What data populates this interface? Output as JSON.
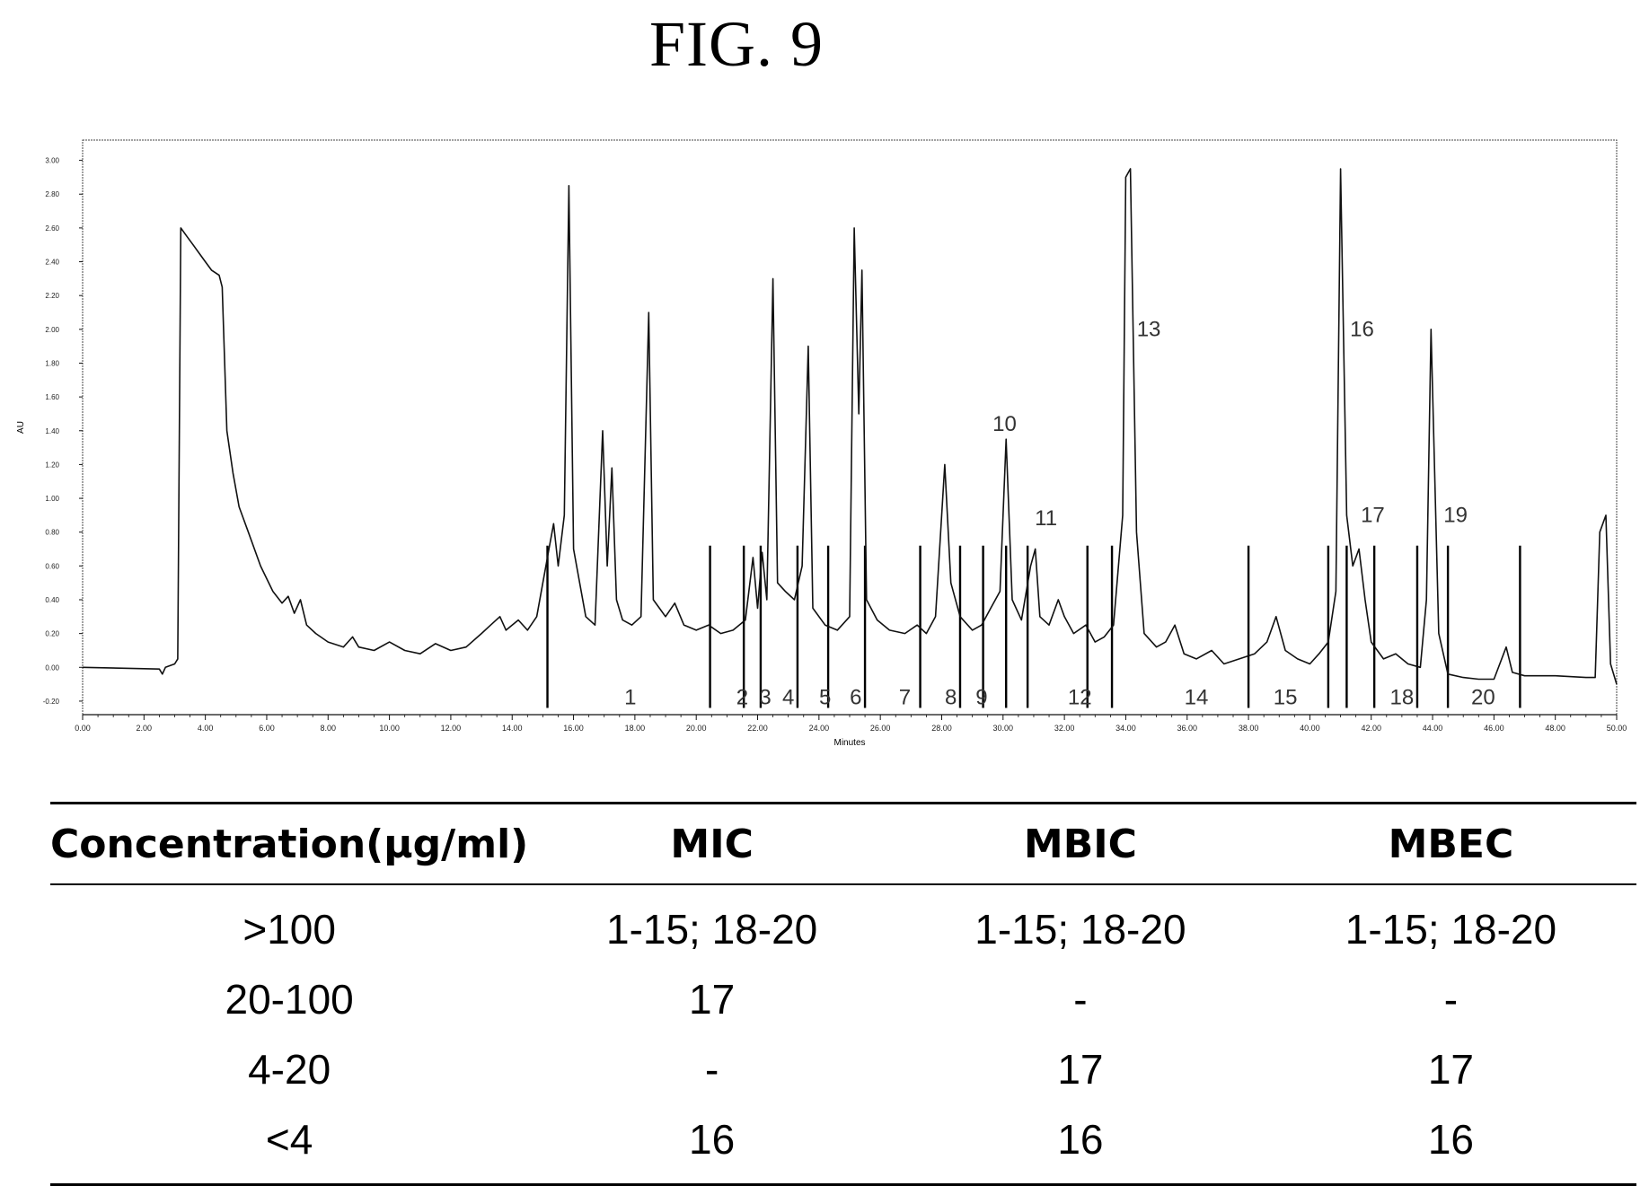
{
  "figure_title": "FIG. 9",
  "chart_data": {
    "type": "line",
    "xlabel": "Minutes",
    "ylabel": "AU",
    "xlim": [
      0,
      50
    ],
    "ylim": [
      -0.28,
      3.12
    ],
    "x_ticks": [
      "0.00",
      "2.00",
      "4.00",
      "6.00",
      "8.00",
      "10.00",
      "12.00",
      "14.00",
      "16.00",
      "18.00",
      "20.00",
      "22.00",
      "24.00",
      "26.00",
      "28.00",
      "30.00",
      "32.00",
      "34.00",
      "36.00",
      "38.00",
      "40.00",
      "42.00",
      "44.00",
      "46.00",
      "48.00",
      "50.00"
    ],
    "y_ticks": [
      "-0.20",
      "0.00",
      "0.20",
      "0.40",
      "0.60",
      "0.80",
      "1.00",
      "1.20",
      "1.40",
      "1.60",
      "1.80",
      "2.00",
      "2.20",
      "2.40",
      "2.60",
      "2.80",
      "3.00"
    ],
    "trace": [
      [
        0,
        0.0
      ],
      [
        2.5,
        -0.01
      ],
      [
        2.6,
        -0.04
      ],
      [
        2.7,
        0.0
      ],
      [
        3.0,
        0.02
      ],
      [
        3.1,
        0.05
      ],
      [
        3.2,
        2.6
      ],
      [
        3.4,
        2.55
      ],
      [
        3.6,
        2.5
      ],
      [
        3.8,
        2.45
      ],
      [
        4.0,
        2.4
      ],
      [
        4.2,
        2.35
      ],
      [
        4.45,
        2.32
      ],
      [
        4.55,
        2.25
      ],
      [
        4.7,
        1.4
      ],
      [
        4.9,
        1.15
      ],
      [
        5.1,
        0.95
      ],
      [
        5.4,
        0.8
      ],
      [
        5.8,
        0.6
      ],
      [
        6.2,
        0.45
      ],
      [
        6.5,
        0.38
      ],
      [
        6.7,
        0.42
      ],
      [
        6.9,
        0.32
      ],
      [
        7.1,
        0.4
      ],
      [
        7.3,
        0.25
      ],
      [
        7.6,
        0.2
      ],
      [
        8.0,
        0.15
      ],
      [
        8.5,
        0.12
      ],
      [
        8.8,
        0.18
      ],
      [
        9.0,
        0.12
      ],
      [
        9.5,
        0.1
      ],
      [
        10.0,
        0.15
      ],
      [
        10.5,
        0.1
      ],
      [
        11.0,
        0.08
      ],
      [
        11.5,
        0.14
      ],
      [
        12.0,
        0.1
      ],
      [
        12.5,
        0.12
      ],
      [
        13.0,
        0.2
      ],
      [
        13.3,
        0.25
      ],
      [
        13.6,
        0.3
      ],
      [
        13.8,
        0.22
      ],
      [
        14.2,
        0.28
      ],
      [
        14.5,
        0.22
      ],
      [
        14.8,
        0.3
      ],
      [
        15.0,
        0.5
      ],
      [
        15.2,
        0.7
      ],
      [
        15.35,
        0.85
      ],
      [
        15.5,
        0.6
      ],
      [
        15.7,
        0.9
      ],
      [
        15.85,
        2.85
      ],
      [
        16.0,
        0.7
      ],
      [
        16.2,
        0.5
      ],
      [
        16.4,
        0.3
      ],
      [
        16.7,
        0.25
      ],
      [
        16.95,
        1.4
      ],
      [
        17.1,
        0.6
      ],
      [
        17.25,
        1.18
      ],
      [
        17.4,
        0.4
      ],
      [
        17.6,
        0.28
      ],
      [
        17.9,
        0.25
      ],
      [
        18.2,
        0.3
      ],
      [
        18.45,
        2.1
      ],
      [
        18.6,
        0.4
      ],
      [
        18.8,
        0.35
      ],
      [
        19.0,
        0.3
      ],
      [
        19.3,
        0.38
      ],
      [
        19.6,
        0.25
      ],
      [
        20.0,
        0.22
      ],
      [
        20.4,
        0.25
      ],
      [
        20.8,
        0.2
      ],
      [
        21.2,
        0.22
      ],
      [
        21.6,
        0.28
      ],
      [
        21.85,
        0.65
      ],
      [
        22.0,
        0.35
      ],
      [
        22.15,
        0.68
      ],
      [
        22.3,
        0.4
      ],
      [
        22.5,
        2.3
      ],
      [
        22.65,
        0.5
      ],
      [
        22.9,
        0.45
      ],
      [
        23.2,
        0.4
      ],
      [
        23.45,
        0.6
      ],
      [
        23.65,
        1.9
      ],
      [
        23.8,
        0.35
      ],
      [
        24.2,
        0.25
      ],
      [
        24.6,
        0.22
      ],
      [
        25.0,
        0.3
      ],
      [
        25.15,
        2.6
      ],
      [
        25.3,
        1.5
      ],
      [
        25.4,
        2.35
      ],
      [
        25.55,
        0.4
      ],
      [
        25.9,
        0.28
      ],
      [
        26.3,
        0.22
      ],
      [
        26.8,
        0.2
      ],
      [
        27.2,
        0.25
      ],
      [
        27.5,
        0.2
      ],
      [
        27.8,
        0.3
      ],
      [
        28.1,
        1.2
      ],
      [
        28.3,
        0.5
      ],
      [
        28.6,
        0.3
      ],
      [
        29.0,
        0.22
      ],
      [
        29.3,
        0.25
      ],
      [
        29.6,
        0.35
      ],
      [
        29.9,
        0.45
      ],
      [
        30.1,
        1.35
      ],
      [
        30.3,
        0.4
      ],
      [
        30.6,
        0.28
      ],
      [
        30.9,
        0.6
      ],
      [
        31.05,
        0.7
      ],
      [
        31.2,
        0.3
      ],
      [
        31.5,
        0.25
      ],
      [
        31.8,
        0.4
      ],
      [
        32.0,
        0.3
      ],
      [
        32.3,
        0.2
      ],
      [
        32.7,
        0.25
      ],
      [
        33.0,
        0.15
      ],
      [
        33.3,
        0.18
      ],
      [
        33.6,
        0.25
      ],
      [
        33.9,
        0.9
      ],
      [
        34.0,
        2.9
      ],
      [
        34.15,
        2.95
      ],
      [
        34.35,
        0.8
      ],
      [
        34.6,
        0.2
      ],
      [
        35.0,
        0.12
      ],
      [
        35.3,
        0.15
      ],
      [
        35.6,
        0.25
      ],
      [
        35.9,
        0.08
      ],
      [
        36.3,
        0.05
      ],
      [
        36.8,
        0.1
      ],
      [
        37.2,
        0.02
      ],
      [
        37.7,
        0.05
      ],
      [
        38.2,
        0.08
      ],
      [
        38.6,
        0.15
      ],
      [
        38.9,
        0.3
      ],
      [
        39.2,
        0.1
      ],
      [
        39.6,
        0.05
      ],
      [
        40.0,
        0.02
      ],
      [
        40.3,
        0.08
      ],
      [
        40.6,
        0.15
      ],
      [
        40.85,
        0.45
      ],
      [
        41.0,
        2.95
      ],
      [
        41.2,
        0.9
      ],
      [
        41.4,
        0.6
      ],
      [
        41.6,
        0.7
      ],
      [
        41.8,
        0.4
      ],
      [
        42.0,
        0.15
      ],
      [
        42.4,
        0.05
      ],
      [
        42.8,
        0.08
      ],
      [
        43.2,
        0.02
      ],
      [
        43.6,
        0.0
      ],
      [
        43.8,
        0.4
      ],
      [
        43.95,
        2.0
      ],
      [
        44.2,
        0.2
      ],
      [
        44.5,
        -0.04
      ],
      [
        45.0,
        -0.06
      ],
      [
        45.5,
        -0.07
      ],
      [
        46.0,
        -0.07
      ],
      [
        46.4,
        0.12
      ],
      [
        46.6,
        -0.03
      ],
      [
        47.0,
        -0.05
      ],
      [
        48.0,
        -0.05
      ],
      [
        49.0,
        -0.06
      ],
      [
        49.3,
        -0.06
      ],
      [
        49.45,
        0.8
      ],
      [
        49.65,
        0.9
      ],
      [
        49.8,
        0.02
      ],
      [
        50.0,
        -0.1
      ]
    ],
    "peak_labels": [
      {
        "label": "1",
        "x": 17.85,
        "y": -0.22
      },
      {
        "label": "2",
        "x": 21.5,
        "y": -0.22
      },
      {
        "label": "3",
        "x": 22.25,
        "y": -0.22
      },
      {
        "label": "4",
        "x": 23.0,
        "y": -0.22
      },
      {
        "label": "5",
        "x": 24.2,
        "y": -0.22
      },
      {
        "label": "6",
        "x": 25.2,
        "y": -0.22
      },
      {
        "label": "7",
        "x": 26.8,
        "y": -0.22
      },
      {
        "label": "8",
        "x": 28.3,
        "y": -0.22
      },
      {
        "label": "9",
        "x": 29.3,
        "y": -0.22
      },
      {
        "label": "10",
        "x": 30.05,
        "y": 1.4
      },
      {
        "label": "11",
        "x": 31.4,
        "y": 0.84
      },
      {
        "label": "12",
        "x": 32.5,
        "y": -0.22
      },
      {
        "label": "13",
        "x": 34.75,
        "y": 1.96
      },
      {
        "label": "14",
        "x": 36.3,
        "y": -0.22
      },
      {
        "label": "15",
        "x": 39.2,
        "y": -0.22
      },
      {
        "label": "16",
        "x": 41.7,
        "y": 1.96
      },
      {
        "label": "17",
        "x": 42.05,
        "y": 0.86
      },
      {
        "label": "18",
        "x": 43.0,
        "y": -0.22
      },
      {
        "label": "19",
        "x": 44.75,
        "y": 0.86
      },
      {
        "label": "20",
        "x": 45.65,
        "y": -0.22
      }
    ],
    "markers": [
      15.15,
      20.45,
      21.55,
      22.1,
      23.3,
      24.3,
      25.5,
      27.3,
      28.6,
      29.35,
      30.1,
      30.8,
      32.75,
      33.55,
      38.0,
      40.6,
      41.2,
      42.1,
      43.5,
      44.5,
      46.85
    ]
  },
  "table": {
    "headers": [
      "Concentration(µg/ml)",
      "MIC",
      "MBIC",
      "MBEC"
    ],
    "rows": [
      [
        ">100",
        "1-15; 18-20",
        "1-15; 18-20",
        "1-15; 18-20"
      ],
      [
        "20-100",
        "17",
        "-",
        "-"
      ],
      [
        "4-20",
        "-",
        "17",
        "17"
      ],
      [
        "<4",
        "16",
        "16",
        "16"
      ]
    ]
  }
}
